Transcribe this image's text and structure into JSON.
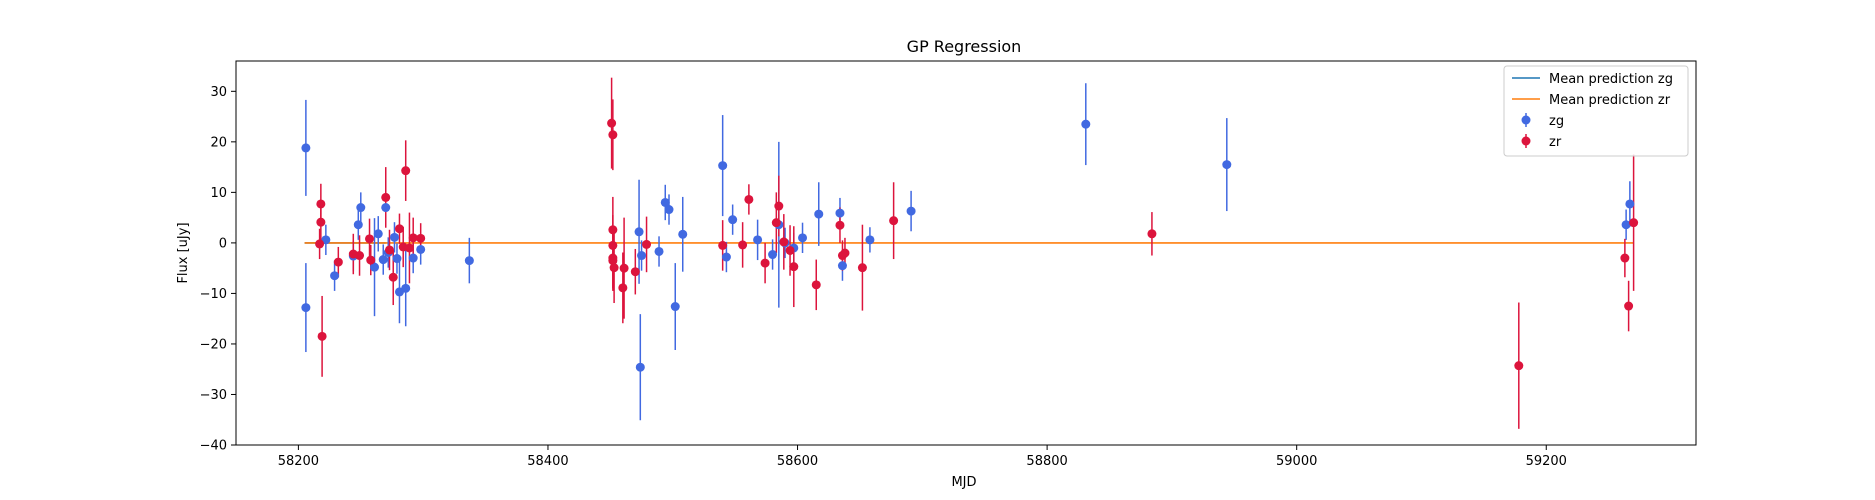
{
  "chart_data": {
    "type": "scatter",
    "title": "GP Regression",
    "xlabel": "MJD",
    "ylabel": "Flux [uJy]",
    "xlim": [
      58150,
      59320
    ],
    "ylim": [
      -40,
      36
    ],
    "xticks": [
      58200,
      58400,
      58600,
      58800,
      59000,
      59200
    ],
    "yticks": [
      -40,
      -30,
      -20,
      -10,
      0,
      10,
      20,
      30
    ],
    "grid": false,
    "legend_position": "top-right",
    "lines": [
      {
        "name": "Mean prediction zg",
        "color": "#1f77b4",
        "x": [
          58205,
          58270
        ],
        "y": [
          0,
          0
        ]
      },
      {
        "name": "Mean prediction zr",
        "color": "#ff7f0e",
        "x": [
          58205,
          59270
        ],
        "y": [
          0,
          0
        ]
      }
    ],
    "series": [
      {
        "name": "zg",
        "color": "#4169e1",
        "points": [
          {
            "x": 58206,
            "y": 18.8,
            "err": 9.5
          },
          {
            "x": 58206,
            "y": -12.8,
            "err": 8.8
          },
          {
            "x": 58222,
            "y": 0.6,
            "err": 3.0
          },
          {
            "x": 58229,
            "y": -6.5,
            "err": 3.0
          },
          {
            "x": 58244,
            "y": -2.6,
            "err": 3.0
          },
          {
            "x": 58248,
            "y": 3.6,
            "err": 3.0
          },
          {
            "x": 58250,
            "y": 7.0,
            "err": 3.0
          },
          {
            "x": 58261,
            "y": -4.8,
            "err": 9.7
          },
          {
            "x": 58264,
            "y": 1.8,
            "err": 3.5
          },
          {
            "x": 58268,
            "y": -3.3,
            "err": 3.0
          },
          {
            "x": 58270,
            "y": 7.0,
            "err": 3.0
          },
          {
            "x": 58272,
            "y": -1.9,
            "err": 3.0
          },
          {
            "x": 58277,
            "y": 1.1,
            "err": 3.0
          },
          {
            "x": 58279,
            "y": -3.1,
            "err": 3.0
          },
          {
            "x": 58281,
            "y": -9.7,
            "err": 6.2
          },
          {
            "x": 58286,
            "y": -9.0,
            "err": 7.5
          },
          {
            "x": 58292,
            "y": -3.0,
            "err": 3.0
          },
          {
            "x": 58298,
            "y": -1.3,
            "err": 3.0
          },
          {
            "x": 58337,
            "y": -3.5,
            "err": 4.5
          },
          {
            "x": 58473,
            "y": 2.2,
            "err": 10.3
          },
          {
            "x": 58474,
            "y": -24.6,
            "err": 10.5
          },
          {
            "x": 58475,
            "y": -2.5,
            "err": 3.0
          },
          {
            "x": 58489,
            "y": -1.7,
            "err": 3.0
          },
          {
            "x": 58494,
            "y": 8.0,
            "err": 3.5
          },
          {
            "x": 58497,
            "y": 6.6,
            "err": 3.0
          },
          {
            "x": 58502,
            "y": -12.6,
            "err": 8.6
          },
          {
            "x": 58508,
            "y": 1.7,
            "err": 7.4
          },
          {
            "x": 58540,
            "y": 15.3,
            "err": 10.0
          },
          {
            "x": 58543,
            "y": -2.8,
            "err": 3.0
          },
          {
            "x": 58548,
            "y": 4.6,
            "err": 3.0
          },
          {
            "x": 58568,
            "y": 0.6,
            "err": 4.0
          },
          {
            "x": 58580,
            "y": -2.3,
            "err": 3.0
          },
          {
            "x": 58585,
            "y": 3.6,
            "err": 16.4
          },
          {
            "x": 58590,
            "y": 0.0,
            "err": 3.0
          },
          {
            "x": 58597,
            "y": -1.0,
            "err": 3.0
          },
          {
            "x": 58604,
            "y": 1.0,
            "err": 3.0
          },
          {
            "x": 58617,
            "y": 5.7,
            "err": 6.3
          },
          {
            "x": 58634,
            "y": 5.9,
            "err": 3.0
          },
          {
            "x": 58636,
            "y": -4.5,
            "err": 3.0
          },
          {
            "x": 58658,
            "y": 0.6,
            "err": 2.5
          },
          {
            "x": 58691,
            "y": 6.3,
            "err": 4.0
          },
          {
            "x": 58831,
            "y": 23.5,
            "err": 8.1
          },
          {
            "x": 58944,
            "y": 15.5,
            "err": 9.2
          },
          {
            "x": 59264,
            "y": 3.6,
            "err": 3.0
          },
          {
            "x": 59267,
            "y": 7.7,
            "err": 4.5
          }
        ]
      },
      {
        "name": "zr",
        "color": "#dc143c",
        "points": [
          {
            "x": 58217,
            "y": -0.2,
            "err": 3.0
          },
          {
            "x": 58218,
            "y": 7.7,
            "err": 4.0
          },
          {
            "x": 58218,
            "y": 4.1,
            "err": 4.0
          },
          {
            "x": 58219,
            "y": -18.5,
            "err": 8.0
          },
          {
            "x": 58232,
            "y": -3.8,
            "err": 3.0
          },
          {
            "x": 58244,
            "y": -2.2,
            "err": 4.0
          },
          {
            "x": 58249,
            "y": -2.5,
            "err": 4.0
          },
          {
            "x": 58257,
            "y": 0.8,
            "err": 4.0
          },
          {
            "x": 58258,
            "y": -3.4,
            "err": 3.0
          },
          {
            "x": 58270,
            "y": 9.0,
            "err": 6.0
          },
          {
            "x": 58273,
            "y": -1.4,
            "err": 4.0
          },
          {
            "x": 58276,
            "y": -6.8,
            "err": 5.5
          },
          {
            "x": 58281,
            "y": 2.8,
            "err": 3.0
          },
          {
            "x": 58284,
            "y": -0.8,
            "err": 4.0
          },
          {
            "x": 58286,
            "y": 14.3,
            "err": 6.0
          },
          {
            "x": 58289,
            "y": -1.0,
            "err": 7.0
          },
          {
            "x": 58292,
            "y": 1.0,
            "err": 4.0
          },
          {
            "x": 58298,
            "y": 0.9,
            "err": 3.0
          },
          {
            "x": 58451,
            "y": 23.7,
            "err": 9.0
          },
          {
            "x": 58452,
            "y": 21.4,
            "err": 7.0
          },
          {
            "x": 58452,
            "y": 2.6,
            "err": 6.5
          },
          {
            "x": 58452,
            "y": -0.5,
            "err": 6.0
          },
          {
            "x": 58452,
            "y": -3.0,
            "err": 6.0
          },
          {
            "x": 58452,
            "y": -3.5,
            "err": 6.0
          },
          {
            "x": 58453,
            "y": -4.9,
            "err": 7.0
          },
          {
            "x": 58460,
            "y": -8.9,
            "err": 7.0
          },
          {
            "x": 58461,
            "y": -5.0,
            "err": 10.0
          },
          {
            "x": 58470,
            "y": -5.7,
            "err": 4.5
          },
          {
            "x": 58479,
            "y": -0.3,
            "err": 5.5
          },
          {
            "x": 58540,
            "y": -0.5,
            "err": 5.0
          },
          {
            "x": 58556,
            "y": -0.4,
            "err": 4.5
          },
          {
            "x": 58561,
            "y": 8.6,
            "err": 3.0
          },
          {
            "x": 58574,
            "y": -4.0,
            "err": 4.0
          },
          {
            "x": 58583,
            "y": 4.0,
            "err": 6.0
          },
          {
            "x": 58585,
            "y": 7.3,
            "err": 6.0
          },
          {
            "x": 58589,
            "y": 0.2,
            "err": 5.5
          },
          {
            "x": 58594,
            "y": -1.5,
            "err": 5.0
          },
          {
            "x": 58597,
            "y": -4.7,
            "err": 8.0
          },
          {
            "x": 58615,
            "y": -8.3,
            "err": 5.0
          },
          {
            "x": 58634,
            "y": 3.5,
            "err": 3.5
          },
          {
            "x": 58636,
            "y": -2.5,
            "err": 3.0
          },
          {
            "x": 58638,
            "y": -2.0,
            "err": 3.0
          },
          {
            "x": 58652,
            "y": -4.9,
            "err": 8.5
          },
          {
            "x": 58677,
            "y": 4.4,
            "err": 7.6
          },
          {
            "x": 58884,
            "y": 1.8,
            "err": 4.3
          },
          {
            "x": 59178,
            "y": -24.3,
            "err": 12.5
          },
          {
            "x": 59263,
            "y": -3.0,
            "err": 3.8
          },
          {
            "x": 59266,
            "y": -12.5,
            "err": 5.0
          },
          {
            "x": 59270,
            "y": 4.0,
            "err": 13.5
          }
        ]
      }
    ]
  }
}
